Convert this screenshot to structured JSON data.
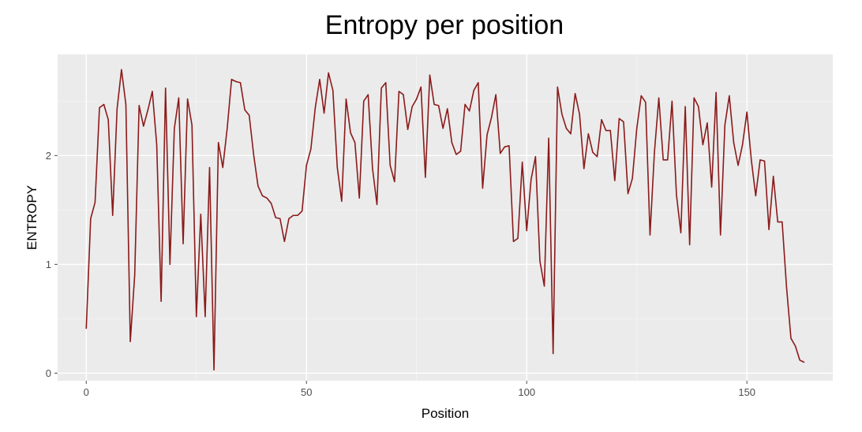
{
  "chart_data": {
    "type": "line",
    "title": "Entropy per position",
    "xlabel": "Position",
    "ylabel": "ENTROPY",
    "xlim": [
      -6.5,
      169.5
    ],
    "ylim": [
      -0.07,
      2.93
    ],
    "x_ticks": [
      0,
      50,
      100,
      150
    ],
    "y_ticks": [
      0,
      1,
      2
    ],
    "x_tick_labels": [
      "0",
      "50",
      "100",
      "150"
    ],
    "y_tick_labels": [
      "0",
      "1",
      "2"
    ],
    "x_minor_ticks": [
      25,
      75,
      125
    ],
    "y_minor_ticks": [
      0.5,
      1.5,
      2.5
    ],
    "grid": true,
    "legend": "none",
    "colors": {
      "line": "#8b1a1a",
      "panel": "#ebebeb",
      "grid_major": "#ffffff",
      "grid_minor": "#f5f5f5",
      "tick": "#4d4d4d"
    },
    "series": [
      {
        "x": [
          0,
          1,
          2,
          3,
          4,
          5,
          6,
          7,
          8,
          9,
          10,
          11,
          12,
          13,
          14,
          15,
          16,
          17,
          18,
          19,
          20,
          21,
          22,
          23,
          24,
          25,
          26,
          27,
          28,
          29,
          30,
          31,
          32,
          33,
          34,
          35,
          36,
          37,
          38,
          39,
          40,
          41,
          42,
          43,
          44,
          45,
          46,
          47,
          48,
          49,
          50,
          51,
          52,
          53,
          54,
          55,
          56,
          57,
          58,
          59,
          60,
          61,
          62,
          63,
          64,
          65,
          66,
          67,
          68,
          69,
          70,
          71,
          72,
          73,
          74,
          75,
          76,
          77,
          78,
          79,
          80,
          81,
          82,
          83,
          84,
          85,
          86,
          87,
          88,
          89,
          90,
          91,
          92,
          93,
          94,
          95,
          96,
          97,
          98,
          99,
          100,
          101,
          102,
          103,
          104,
          105,
          106,
          107,
          108,
          109,
          110,
          111,
          112,
          113,
          114,
          115,
          116,
          117,
          118,
          119,
          120,
          121,
          122,
          123,
          124,
          125,
          126,
          127,
          128,
          129,
          130,
          131,
          132,
          133,
          134,
          135,
          136,
          137,
          138,
          139,
          140,
          141,
          142,
          143,
          144,
          145,
          146,
          147,
          148,
          149,
          150,
          151,
          152,
          153,
          154,
          155,
          156,
          157,
          158,
          159,
          160,
          161,
          162,
          163
        ],
        "values": [
          0.41,
          1.42,
          1.57,
          2.44,
          2.47,
          2.33,
          1.45,
          2.43,
          2.79,
          2.47,
          0.29,
          0.9,
          2.46,
          2.27,
          2.42,
          2.59,
          2.1,
          0.66,
          2.62,
          1.0,
          2.25,
          2.53,
          1.19,
          2.52,
          2.28,
          0.52,
          1.46,
          0.52,
          1.89,
          0.03,
          2.12,
          1.89,
          2.25,
          2.7,
          2.68,
          2.67,
          2.42,
          2.37,
          2.01,
          1.72,
          1.63,
          1.61,
          1.56,
          1.43,
          1.42,
          1.21,
          1.42,
          1.45,
          1.45,
          1.49,
          1.91,
          2.06,
          2.44,
          2.7,
          2.39,
          2.76,
          2.6,
          1.89,
          1.58,
          2.52,
          2.21,
          2.12,
          1.61,
          2.5,
          2.56,
          1.88,
          1.55,
          2.62,
          2.67,
          1.91,
          1.76,
          2.59,
          2.56,
          2.24,
          2.45,
          2.52,
          2.63,
          1.8,
          2.74,
          2.47,
          2.46,
          2.25,
          2.43,
          2.12,
          2.01,
          2.04,
          2.47,
          2.41,
          2.6,
          2.67,
          1.7,
          2.19,
          2.35,
          2.56,
          2.02,
          2.08,
          2.09,
          1.21,
          1.24,
          1.94,
          1.31,
          1.78,
          1.99,
          1.03,
          0.8,
          2.16,
          0.18,
          2.63,
          2.38,
          2.25,
          2.2,
          2.57,
          2.38,
          1.88,
          2.2,
          2.03,
          1.99,
          2.33,
          2.23,
          2.23,
          1.77,
          2.34,
          2.31,
          1.65,
          1.79,
          2.25,
          2.55,
          2.49,
          1.27,
          2.03,
          2.53,
          1.96,
          1.96,
          2.5,
          1.64,
          1.29,
          2.45,
          1.18,
          2.53,
          2.45,
          2.1,
          2.3,
          1.71,
          2.58,
          1.27,
          2.28,
          2.55,
          2.12,
          1.91,
          2.1,
          2.4,
          1.96,
          1.63,
          1.96,
          1.95,
          1.32,
          1.81,
          1.39,
          1.39,
          0.79,
          0.32,
          0.25,
          0.12,
          0.1
        ]
      }
    ]
  }
}
